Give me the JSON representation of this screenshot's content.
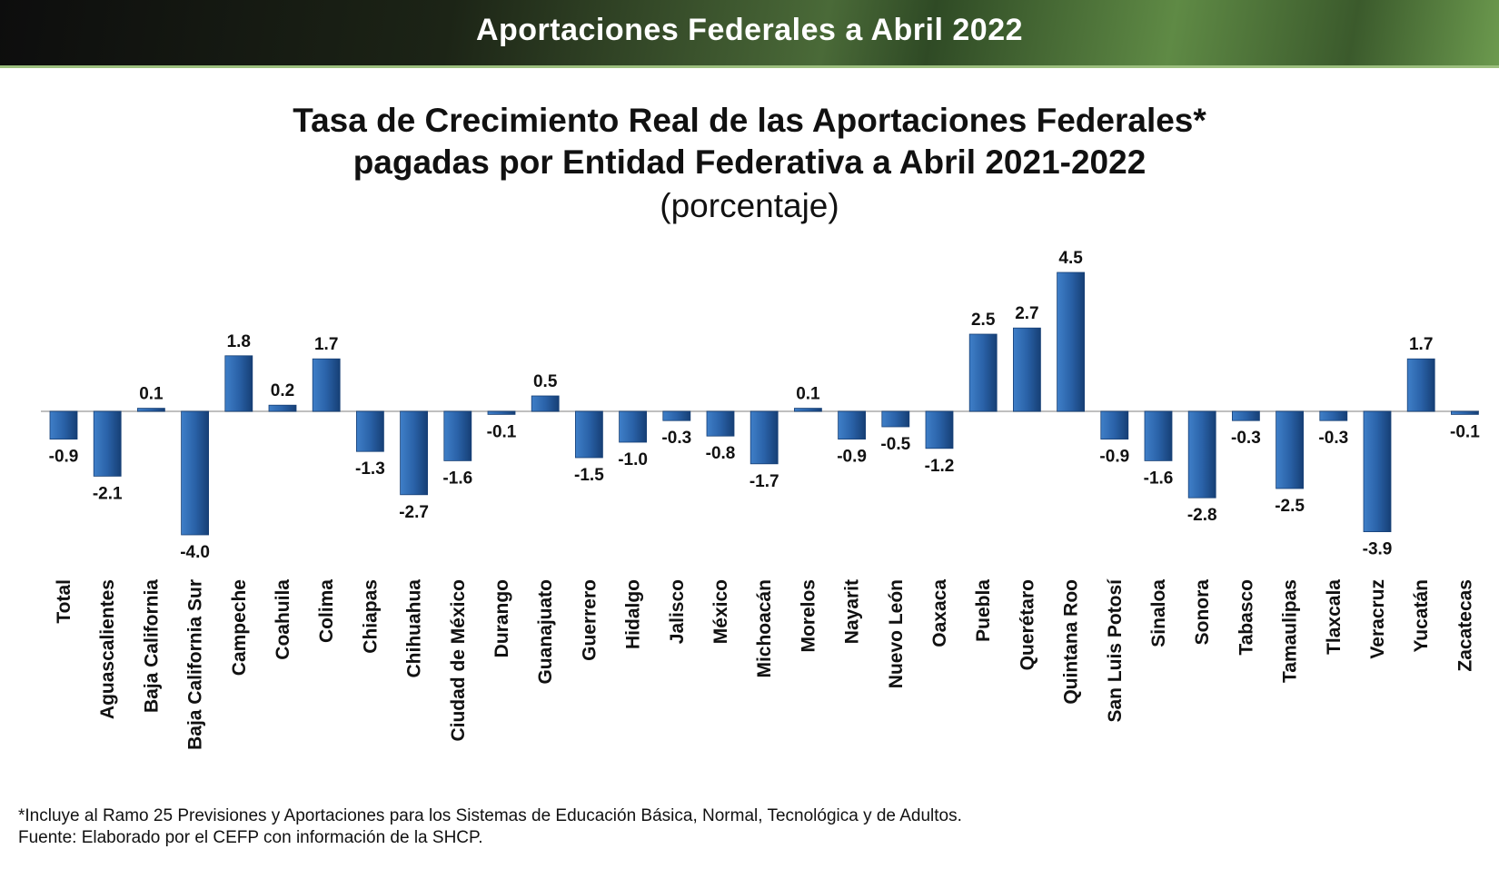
{
  "header": {
    "banner_title": "Aportaciones Federales a Abril 2022"
  },
  "chart_data": {
    "type": "bar",
    "title_line1": "Tasa de Crecimiento Real de las Aportaciones Federales*",
    "title_line2": "pagadas por Entidad Federativa a Abril 2021-2022",
    "subtitle": "(porcentaje)",
    "xlabel": "",
    "ylabel": "",
    "ylim": [
      -4.0,
      4.5
    ],
    "grid": false,
    "legend": "none",
    "colors": {
      "bar_top": "#3f7fc8",
      "bar_mid": "#2a62a8",
      "bar_bottom": "#163f75",
      "axis": "#bfbfbf"
    },
    "categories": [
      "Total",
      "Aguascalientes",
      "Baja California",
      "Baja California Sur",
      "Campeche",
      "Coahuila",
      "Colima",
      "Chiapas",
      "Chihuahua",
      "Ciudad de México",
      "Durango",
      "Guanajuato",
      "Guerrero",
      "Hidalgo",
      "Jalisco",
      "México",
      "Michoacán",
      "Morelos",
      "Nayarit",
      "Nuevo León",
      "Oaxaca",
      "Puebla",
      "Querétaro",
      "Quintana Roo",
      "San Luis Potosí",
      "Sinaloa",
      "Sonora",
      "Tabasco",
      "Tamaulipas",
      "Tlaxcala",
      "Veracruz",
      "Yucatán",
      "Zacatecas"
    ],
    "values": [
      -0.9,
      -2.1,
      0.1,
      -4.0,
      1.8,
      0.2,
      1.7,
      -1.3,
      -2.7,
      -1.6,
      -0.1,
      0.5,
      -1.5,
      -1.0,
      -0.3,
      -0.8,
      -1.7,
      0.1,
      -0.9,
      -0.5,
      -1.2,
      2.5,
      2.7,
      4.5,
      -0.9,
      -1.6,
      -2.8,
      -0.3,
      -2.5,
      -0.3,
      -3.9,
      1.7,
      -0.1
    ],
    "data_labels": [
      "-0.9",
      "-2.1",
      "0.1",
      "-4.0",
      "1.8",
      "0.2",
      "1.7",
      "-1.3",
      "-2.7",
      "-1.6",
      "-0.1",
      "0.5",
      "-1.5",
      "-1.0",
      "-0.3",
      "-0.8",
      "-1.7",
      "0.1",
      "-0.9",
      "-0.5",
      "-1.2",
      "2.5",
      "2.7",
      "4.5",
      "-0.9",
      "-1.6",
      "-2.8",
      "-0.3",
      "-2.5",
      "-0.3",
      "-3.9",
      "1.7",
      "-0.1"
    ]
  },
  "footnotes": {
    "note": "*Incluye al Ramo 25 Previsiones y Aportaciones para los Sistemas de Educación Básica, Normal, Tecnológica y de Adultos.",
    "source": "Fuente: Elaborado por el CEFP con información de la SHCP."
  }
}
